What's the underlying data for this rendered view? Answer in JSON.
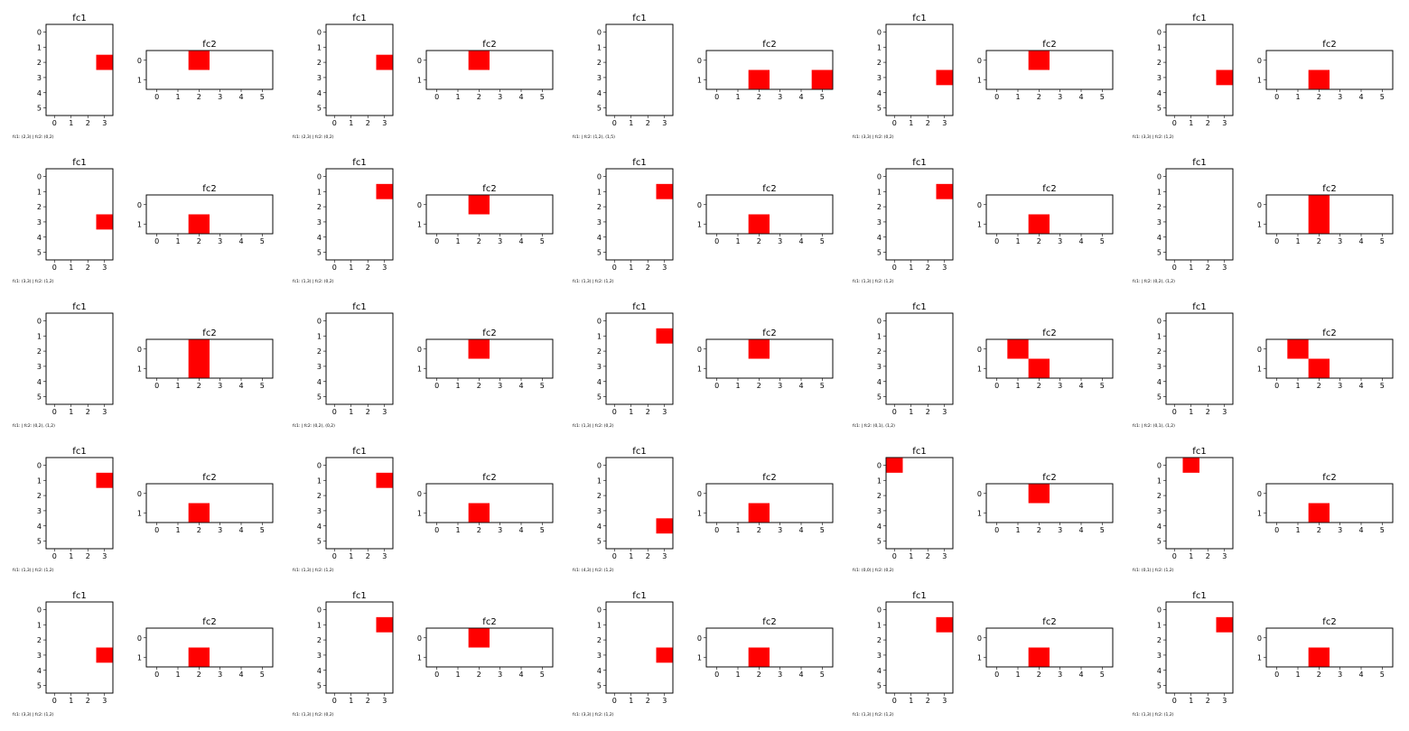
{
  "chart_data": {
    "type": "heatmap",
    "grid": "off",
    "legend": "none",
    "layout": {
      "rows": 5,
      "cols": 5
    },
    "mark_color": "#ff0000",
    "fc1": {
      "title": "fc1",
      "rows": 6,
      "cols": 4,
      "xticks": [
        "0",
        "1",
        "2",
        "3"
      ],
      "yticks": [
        "0",
        "1",
        "2",
        "3",
        "4",
        "5"
      ]
    },
    "fc2": {
      "title": "fc2",
      "rows": 2,
      "cols": 6,
      "xticks": [
        "0",
        "1",
        "2",
        "3",
        "4",
        "5"
      ],
      "yticks": [
        "0",
        "1"
      ]
    },
    "panels": [
      {
        "fc1": [
          [
            2,
            3
          ]
        ],
        "fc2": [
          [
            0,
            2
          ]
        ],
        "caption": "fc1: (2,3) | fc2: (0,2)"
      },
      {
        "fc1": [
          [
            2,
            3
          ]
        ],
        "fc2": [
          [
            0,
            2
          ]
        ],
        "caption": "fc1: (2,3) | fc2: (0,2)"
      },
      {
        "fc1": [],
        "fc2": [
          [
            1,
            2
          ],
          [
            1,
            5
          ]
        ],
        "caption": "fc1:  | fc2: (1,2), (1,5)"
      },
      {
        "fc1": [
          [
            3,
            3
          ]
        ],
        "fc2": [
          [
            0,
            2
          ]
        ],
        "caption": "fc1: (3,3) | fc2: (0,2)"
      },
      {
        "fc1": [
          [
            3,
            3
          ]
        ],
        "fc2": [
          [
            1,
            2
          ]
        ],
        "caption": "fc1: (3,3) | fc2: (1,2)"
      },
      {
        "fc1": [
          [
            3,
            3
          ]
        ],
        "fc2": [
          [
            1,
            2
          ]
        ],
        "caption": "fc1: (3,3) | fc2: (1,2)"
      },
      {
        "fc1": [
          [
            1,
            3
          ]
        ],
        "fc2": [
          [
            0,
            2
          ]
        ],
        "caption": "fc1: (1,3) | fc2: (0,2)"
      },
      {
        "fc1": [
          [
            1,
            3
          ]
        ],
        "fc2": [
          [
            1,
            2
          ]
        ],
        "caption": "fc1: (1,3) | fc2: (1,2)"
      },
      {
        "fc1": [
          [
            1,
            3
          ]
        ],
        "fc2": [
          [
            1,
            2
          ]
        ],
        "caption": "fc1: (1,3) | fc2: (1,2)"
      },
      {
        "fc1": [],
        "fc2": [
          [
            0,
            2
          ],
          [
            1,
            2
          ]
        ],
        "caption": "fc1:  | fc2: (0,2), (1,2)"
      },
      {
        "fc1": [],
        "fc2": [
          [
            0,
            2
          ],
          [
            1,
            2
          ]
        ],
        "caption": "fc1:  | fc2: (0,2), (1,2)"
      },
      {
        "fc1": [],
        "fc2": [
          [
            0,
            2
          ],
          [
            0,
            2
          ]
        ],
        "caption": "fc1:  | fc2: (0,2), (0,2)"
      },
      {
        "fc1": [
          [
            1,
            3
          ]
        ],
        "fc2": [
          [
            0,
            2
          ]
        ],
        "caption": "fc1: (1,3) | fc2: (0,2)"
      },
      {
        "fc1": [],
        "fc2": [
          [
            0,
            1
          ],
          [
            1,
            2
          ]
        ],
        "caption": "fc1:  | fc2: (0,1), (1,2)"
      },
      {
        "fc1": [],
        "fc2": [
          [
            0,
            1
          ],
          [
            1,
            2
          ]
        ],
        "caption": "fc1:  | fc2: (0,1), (1,2)"
      },
      {
        "fc1": [
          [
            1,
            3
          ]
        ],
        "fc2": [
          [
            1,
            2
          ]
        ],
        "caption": "fc1: (1,3) | fc2: (1,2)"
      },
      {
        "fc1": [
          [
            1,
            3
          ]
        ],
        "fc2": [
          [
            1,
            2
          ]
        ],
        "caption": "fc1: (1,3) | fc2: (1,2)"
      },
      {
        "fc1": [
          [
            4,
            3
          ]
        ],
        "fc2": [
          [
            1,
            2
          ]
        ],
        "caption": "fc1: (4,3) | fc2: (1,2)"
      },
      {
        "fc1": [
          [
            0,
            0
          ]
        ],
        "fc2": [
          [
            0,
            2
          ]
        ],
        "caption": "fc1: (0,0) | fc2: (0,2)"
      },
      {
        "fc1": [
          [
            0,
            1
          ]
        ],
        "fc2": [
          [
            1,
            2
          ]
        ],
        "caption": "fc1: (0,1) | fc2: (1,2)"
      },
      {
        "fc1": [
          [
            3,
            3
          ]
        ],
        "fc2": [
          [
            1,
            2
          ]
        ],
        "caption": "fc1: (3,3) | fc2: (1,2)"
      },
      {
        "fc1": [
          [
            1,
            3
          ]
        ],
        "fc2": [
          [
            0,
            2
          ]
        ],
        "caption": "fc1: (1,3) | fc2: (0,2)"
      },
      {
        "fc1": [
          [
            3,
            3
          ]
        ],
        "fc2": [
          [
            1,
            2
          ]
        ],
        "caption": "fc1: (3,3) | fc2: (1,2)"
      },
      {
        "fc1": [
          [
            1,
            3
          ]
        ],
        "fc2": [
          [
            1,
            2
          ]
        ],
        "caption": "fc1: (1,3) | fc2: (1,2)"
      },
      {
        "fc1": [
          [
            1,
            3
          ]
        ],
        "fc2": [
          [
            1,
            2
          ]
        ],
        "caption": "fc1: (1,3) | fc2: (1,2)"
      }
    ]
  }
}
